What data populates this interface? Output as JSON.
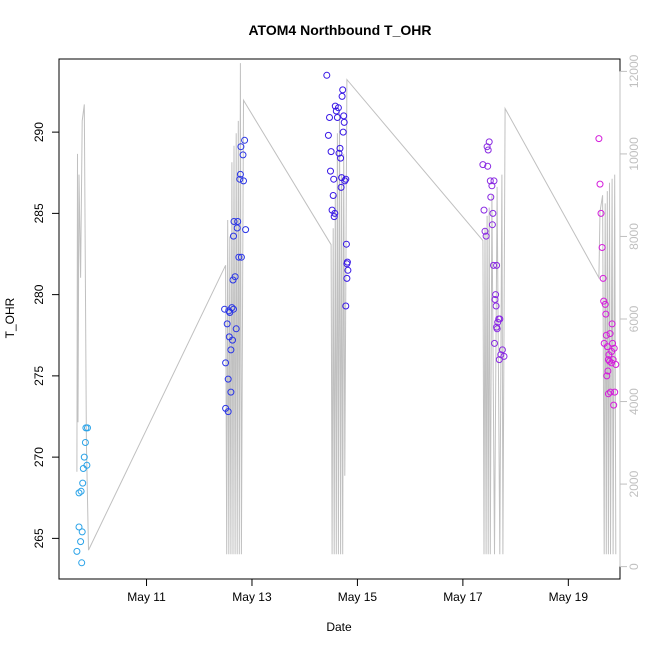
{
  "chart_data": {
    "type": "scatter",
    "title": "ATOM4 Northbound T_OHR",
    "xlabel": "Date",
    "ylabel": "T_OHR",
    "x_unit": "day of May",
    "xlim": [
      9.34,
      19.98
    ],
    "ylim": [
      262.5,
      294.5
    ],
    "y2lim": [
      -300,
      12300
    ],
    "x_ticks": [
      {
        "value": 11,
        "label": "May 11"
      },
      {
        "value": 13,
        "label": "May 13"
      },
      {
        "value": 15,
        "label": "May 15"
      },
      {
        "value": 17,
        "label": "May 17"
      },
      {
        "value": 19,
        "label": "May 19"
      }
    ],
    "y_ticks": [
      265,
      270,
      275,
      280,
      285,
      290
    ],
    "y2_ticks": [
      0,
      2000,
      4000,
      6000,
      8000,
      10000,
      12000
    ],
    "grid": false,
    "point_style": "open circle",
    "line_color": "#c0c0c0",
    "series": [
      {
        "color": "#2ba3e8",
        "points": [
          [
            9.68,
            264.2
          ],
          [
            9.72,
            265.7
          ],
          [
            9.75,
            264.8
          ],
          [
            9.77,
            263.5
          ],
          [
            9.78,
            265.4
          ],
          [
            9.72,
            267.8
          ],
          [
            9.76,
            267.9
          ],
          [
            9.79,
            268.4
          ],
          [
            9.8,
            269.3
          ],
          [
            9.82,
            270.0
          ],
          [
            9.84,
            270.9
          ],
          [
            9.85,
            271.8
          ],
          [
            9.87,
            269.5
          ],
          [
            9.88,
            271.8
          ]
        ]
      },
      {
        "color": "#2a35e6",
        "points": [
          [
            12.48,
            279.1
          ],
          [
            12.5,
            275.8
          ],
          [
            12.5,
            273.0
          ],
          [
            12.53,
            278.2
          ],
          [
            12.55,
            272.8
          ],
          [
            12.55,
            274.8
          ],
          [
            12.57,
            277.4
          ],
          [
            12.58,
            278.9
          ],
          [
            12.6,
            276.6
          ],
          [
            12.6,
            274.0
          ],
          [
            12.62,
            279.2
          ],
          [
            12.63,
            277.2
          ],
          [
            12.64,
            280.9
          ],
          [
            12.65,
            283.6
          ],
          [
            12.66,
            284.5
          ],
          [
            12.68,
            281.1
          ],
          [
            12.7,
            277.9
          ],
          [
            12.72,
            284.1
          ],
          [
            12.73,
            284.5
          ],
          [
            12.75,
            282.3
          ],
          [
            12.77,
            287.1
          ],
          [
            12.78,
            287.4
          ],
          [
            12.79,
            289.1
          ],
          [
            12.8,
            282.3
          ],
          [
            12.83,
            288.6
          ],
          [
            12.84,
            287.0
          ],
          [
            12.86,
            289.5
          ],
          [
            12.88,
            284.0
          ],
          [
            12.65,
            279.1
          ],
          [
            12.56,
            279.0
          ]
        ]
      },
      {
        "color": "#3818e6",
        "points": [
          [
            14.42,
            293.5
          ],
          [
            14.45,
            289.8
          ],
          [
            14.47,
            290.9
          ],
          [
            14.49,
            287.6
          ],
          [
            14.5,
            288.8
          ],
          [
            14.52,
            285.2
          ],
          [
            14.54,
            286.1
          ],
          [
            14.55,
            287.1
          ],
          [
            14.56,
            284.8
          ],
          [
            14.57,
            285.0
          ],
          [
            14.58,
            291.6
          ],
          [
            14.6,
            291.3
          ],
          [
            14.62,
            290.9
          ],
          [
            14.64,
            291.5
          ],
          [
            14.65,
            288.7
          ],
          [
            14.67,
            289.0
          ],
          [
            14.68,
            288.4
          ],
          [
            14.69,
            286.6
          ],
          [
            14.7,
            287.2
          ],
          [
            14.71,
            292.2
          ],
          [
            14.72,
            292.6
          ],
          [
            14.74,
            291.0
          ],
          [
            14.75,
            290.6
          ],
          [
            14.73,
            290.0
          ],
          [
            14.76,
            287.0
          ],
          [
            14.78,
            287.1
          ],
          [
            14.79,
            283.1
          ],
          [
            14.8,
            281.9
          ],
          [
            14.81,
            282.0
          ],
          [
            14.82,
            281.5
          ],
          [
            14.8,
            281.0
          ],
          [
            14.78,
            279.3
          ]
        ]
      },
      {
        "color": "#8a2be2",
        "points": [
          [
            17.38,
            288.0
          ],
          [
            17.4,
            285.2
          ],
          [
            17.42,
            283.9
          ],
          [
            17.44,
            283.6
          ],
          [
            17.46,
            289.1
          ],
          [
            17.47,
            287.9
          ],
          [
            17.48,
            288.9
          ],
          [
            17.5,
            289.4
          ],
          [
            17.52,
            287.0
          ],
          [
            17.53,
            286.0
          ],
          [
            17.55,
            286.7
          ],
          [
            17.56,
            284.3
          ],
          [
            17.57,
            285.0
          ],
          [
            17.58,
            281.8
          ],
          [
            17.6,
            277.0
          ],
          [
            17.61,
            279.7
          ],
          [
            17.62,
            280.0
          ],
          [
            17.63,
            279.3
          ],
          [
            17.64,
            278.0
          ],
          [
            17.65,
            277.9
          ],
          [
            17.66,
            278.3
          ],
          [
            17.68,
            278.5
          ],
          [
            17.69,
            276.0
          ],
          [
            17.7,
            278.5
          ],
          [
            17.72,
            276.3
          ],
          [
            17.75,
            276.6
          ],
          [
            17.78,
            276.2
          ],
          [
            17.64,
            281.8
          ],
          [
            17.59,
            287.0
          ]
        ]
      },
      {
        "color": "#d41ddb",
        "points": [
          [
            19.58,
            289.6
          ],
          [
            19.6,
            286.8
          ],
          [
            19.62,
            285.0
          ],
          [
            19.64,
            282.9
          ],
          [
            19.66,
            281.0
          ],
          [
            19.67,
            279.6
          ],
          [
            19.68,
            277.0
          ],
          [
            19.7,
            279.4
          ],
          [
            19.71,
            278.8
          ],
          [
            19.72,
            277.5
          ],
          [
            19.73,
            275.0
          ],
          [
            19.74,
            276.8
          ],
          [
            19.75,
            275.3
          ],
          [
            19.76,
            276.0
          ],
          [
            19.77,
            276.3
          ],
          [
            19.78,
            275.9
          ],
          [
            19.8,
            274.0
          ],
          [
            19.82,
            276.5
          ],
          [
            19.83,
            278.2
          ],
          [
            19.84,
            277.0
          ],
          [
            19.85,
            276.0
          ],
          [
            19.87,
            276.7
          ],
          [
            19.88,
            274.0
          ],
          [
            19.9,
            275.7
          ],
          [
            19.86,
            273.2
          ],
          [
            19.82,
            275.8
          ],
          [
            19.79,
            277.6
          ],
          [
            19.76,
            273.9
          ]
        ]
      }
    ],
    "line_series": {
      "axis": "right",
      "points": [
        [
          9.68,
          2300
        ],
        [
          9.69,
          10000
        ],
        [
          9.7,
          3500
        ],
        [
          9.72,
          9500
        ],
        [
          9.75,
          7000
        ],
        [
          9.78,
          10800
        ],
        [
          9.82,
          11200
        ],
        [
          9.86,
          3000
        ],
        [
          9.9,
          400
        ],
        [
          12.5,
          7300
        ],
        [
          12.52,
          300
        ],
        [
          12.54,
          8400
        ],
        [
          12.56,
          300
        ],
        [
          12.58,
          8000
        ],
        [
          12.6,
          300
        ],
        [
          12.62,
          9800
        ],
        [
          12.64,
          300
        ],
        [
          12.66,
          10200
        ],
        [
          12.68,
          300
        ],
        [
          12.7,
          10500
        ],
        [
          12.72,
          300
        ],
        [
          12.74,
          10800
        ],
        [
          12.76,
          300
        ],
        [
          12.78,
          12200
        ],
        [
          12.8,
          300
        ],
        [
          12.84,
          11300
        ],
        [
          14.5,
          7800
        ],
        [
          14.52,
          300
        ],
        [
          14.54,
          8200
        ],
        [
          14.56,
          300
        ],
        [
          14.58,
          9000
        ],
        [
          14.6,
          300
        ],
        [
          14.62,
          10500
        ],
        [
          14.64,
          300
        ],
        [
          14.66,
          11000
        ],
        [
          14.68,
          300
        ],
        [
          14.7,
          9500
        ],
        [
          14.72,
          300
        ],
        [
          14.74,
          10000
        ],
        [
          14.76,
          2200
        ],
        [
          14.8,
          11800
        ],
        [
          17.38,
          7900
        ],
        [
          17.4,
          300
        ],
        [
          17.42,
          8200
        ],
        [
          17.44,
          300
        ],
        [
          17.46,
          8500
        ],
        [
          17.48,
          300
        ],
        [
          17.5,
          8700
        ],
        [
          17.52,
          300
        ],
        [
          17.55,
          9000
        ],
        [
          17.6,
          300
        ],
        [
          17.65,
          9200
        ],
        [
          17.7,
          300
        ],
        [
          17.74,
          9500
        ],
        [
          17.76,
          300
        ],
        [
          17.8,
          11100
        ],
        [
          19.58,
          7000
        ],
        [
          19.6,
          8600
        ],
        [
          19.65,
          9000
        ],
        [
          19.68,
          300
        ],
        [
          19.7,
          8800
        ],
        [
          19.72,
          300
        ],
        [
          19.74,
          9100
        ],
        [
          19.76,
          300
        ],
        [
          19.78,
          9300
        ],
        [
          19.8,
          300
        ],
        [
          19.83,
          9400
        ],
        [
          19.85,
          300
        ],
        [
          19.88,
          9500
        ],
        [
          19.9,
          300
        ]
      ]
    }
  }
}
